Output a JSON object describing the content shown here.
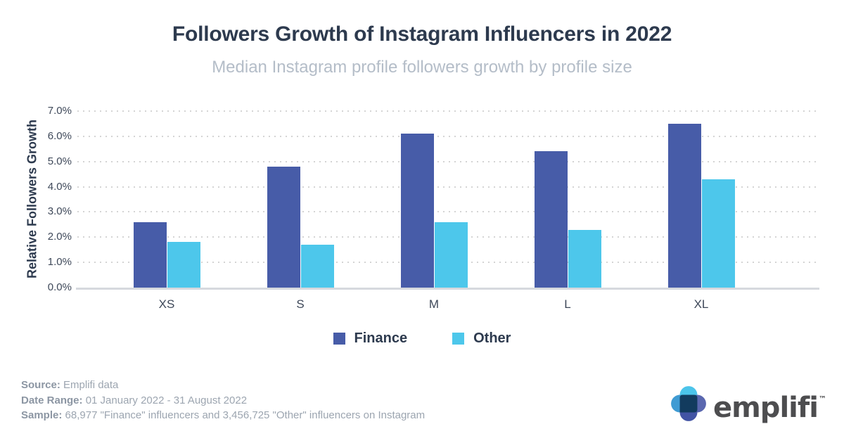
{
  "header": {
    "title": "Followers Growth of Instagram Influencers in 2022",
    "subtitle": "Median Instagram profile followers growth by profile size"
  },
  "chart_data": {
    "type": "bar",
    "title": "Followers Growth of Instagram Influencers in 2022",
    "subtitle": "Median Instagram profile followers growth by profile size",
    "categories": [
      "XS",
      "S",
      "M",
      "L",
      "XL"
    ],
    "series": [
      {
        "name": "Finance",
        "color": "#475CA8",
        "values": [
          2.6,
          4.8,
          6.1,
          5.4,
          6.5
        ]
      },
      {
        "name": "Other",
        "color": "#4DC7EB",
        "values": [
          1.8,
          1.7,
          2.6,
          2.3,
          4.3
        ]
      }
    ],
    "xlabel": "",
    "ylabel": "Relative Followers Growth",
    "ylim": [
      0,
      7
    ],
    "y_ticks": [
      "0.0%",
      "1.0%",
      "2.0%",
      "3.0%",
      "4.0%",
      "5.0%",
      "6.0%",
      "7.0%"
    ],
    "grid": "horizontal-dotted",
    "legend_position": "bottom",
    "unit": "%"
  },
  "footer": {
    "source_label": "Source:",
    "source_value": "Emplifi data",
    "date_range_label": "Date Range:",
    "date_range_value": "01 January 2022 - 31 August 2022",
    "sample_label": "Sample:",
    "sample_value": "68,977 \"Finance\" influencers and 3,456,725 \"Other\" influencers on Instagram"
  },
  "logo": {
    "wordmark": "emplifi",
    "trademark": "™",
    "petal_top_color": "#4CC4EA",
    "petal_left_color": "#3F9BD3",
    "petal_right_color": "#5A67AF",
    "petal_bottom_color": "#4254A4",
    "center_color": "#123B5E",
    "wordmark_color": "#4D4D4F"
  },
  "colors": {
    "title": "#2D3A4E",
    "subtitle": "#B4BDC8",
    "axis_text": "#3E4859",
    "gridline": "#D4D4D4",
    "baseline": "#D6D9DE",
    "finance": "#475CA8",
    "other": "#4DC7EB"
  }
}
